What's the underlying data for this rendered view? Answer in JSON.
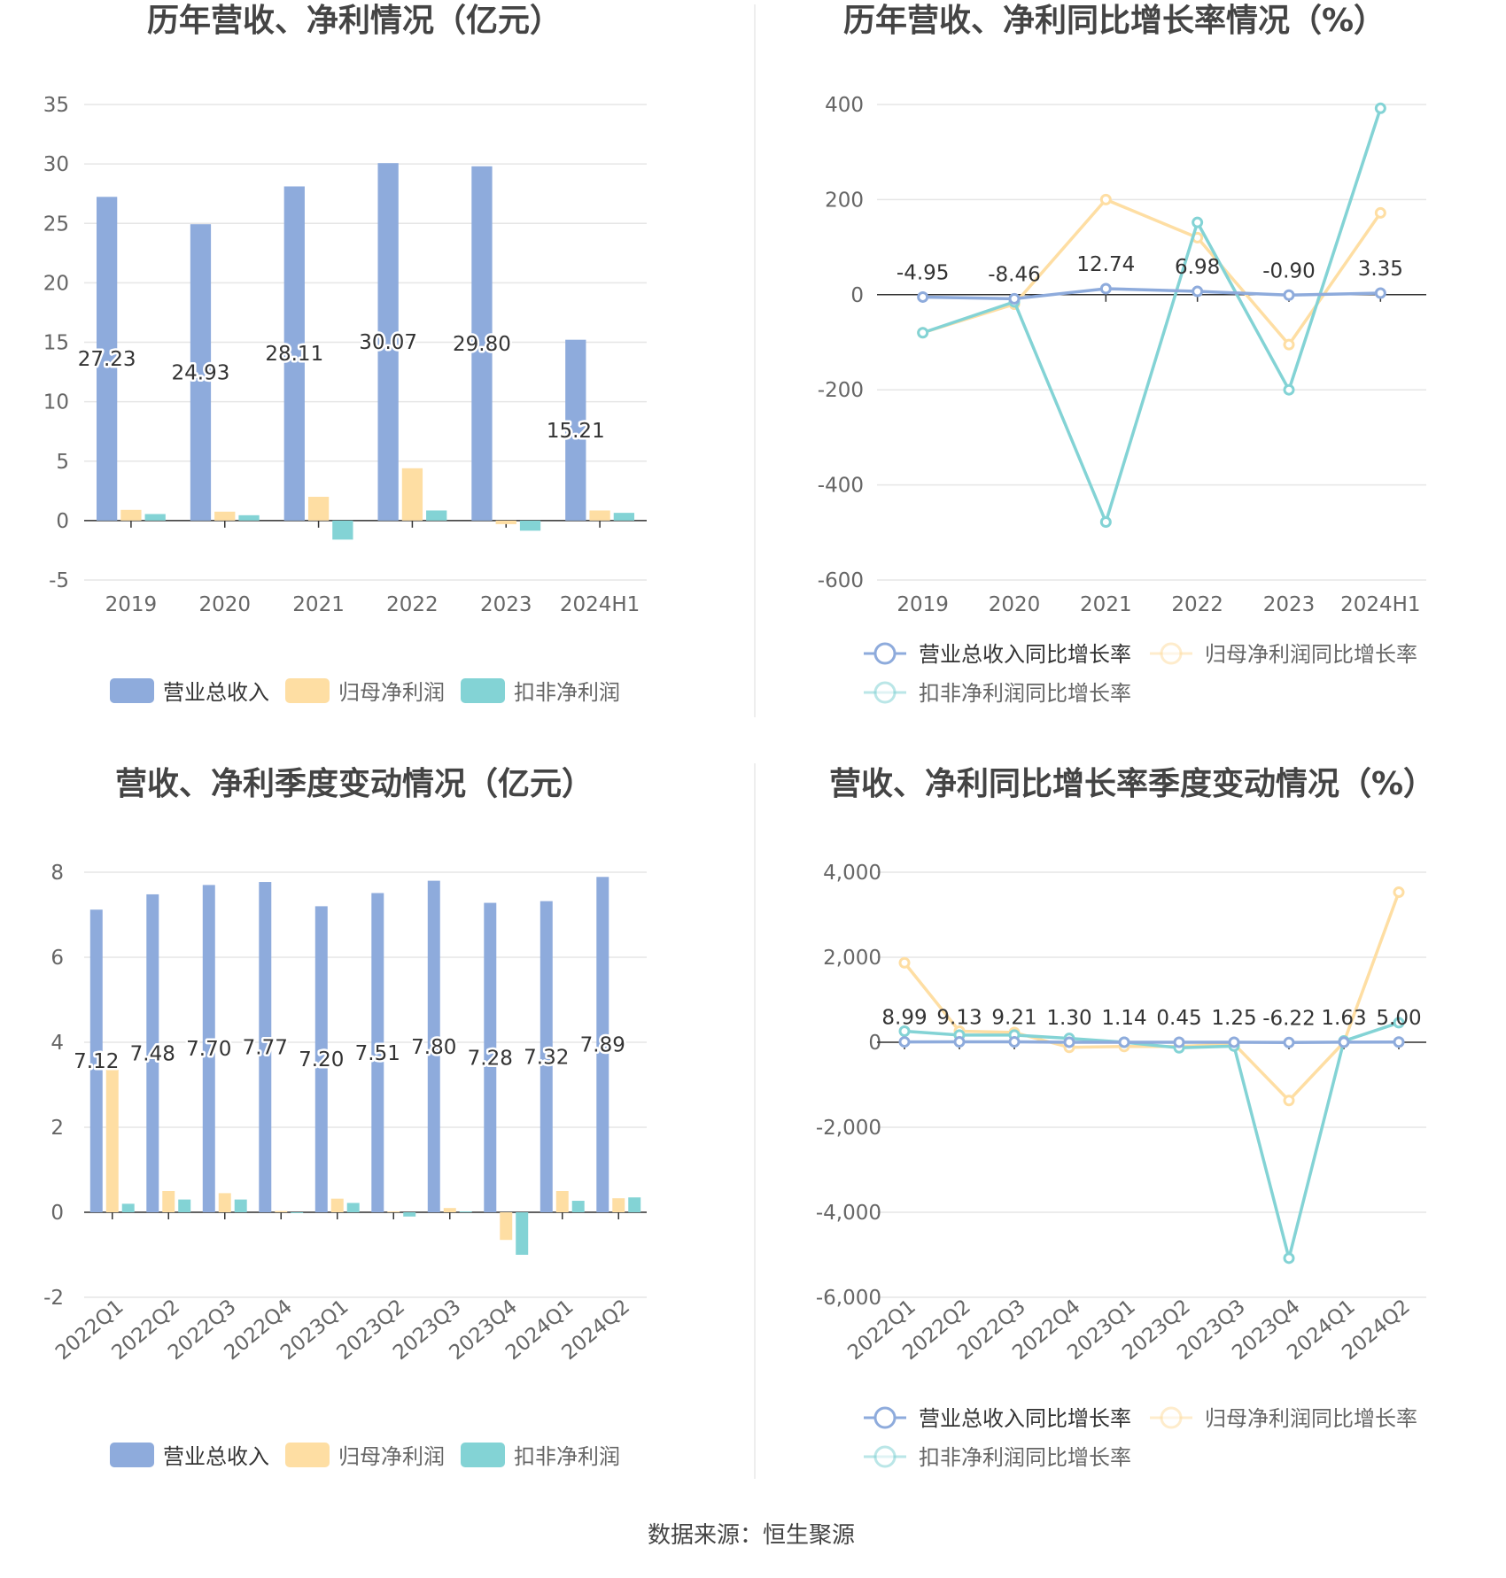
{
  "colors": {
    "revenue": "#8eabdc",
    "net_profit": "#fedea3",
    "deducted_profit": "#83d3d5",
    "grid": "#e6e6e6",
    "axis": "#333333"
  },
  "source_text": "数据来源：恒生聚源",
  "chart_data": [
    {
      "type": "bar",
      "title": "历年营收、净利情况（亿元）",
      "categories": [
        "2019",
        "2020",
        "2021",
        "2022",
        "2023",
        "2024H1"
      ],
      "ylim": [
        -5,
        35
      ],
      "yticks": [
        "35",
        "30",
        "25",
        "20",
        "15",
        "10",
        "5",
        "0",
        "-5"
      ],
      "series": [
        {
          "name": "营业总收入",
          "values": [
            27.23,
            24.93,
            28.11,
            30.07,
            29.8,
            15.21
          ]
        },
        {
          "name": "归母净利润",
          "values": [
            0.9,
            0.75,
            2.0,
            4.4,
            -0.3,
            0.85
          ]
        },
        {
          "name": "扣非净利润",
          "values": [
            0.55,
            0.45,
            -1.6,
            0.85,
            -0.85,
            0.65
          ]
        }
      ],
      "data_labels": [
        "27.23",
        "24.93",
        "28.11",
        "30.07",
        "29.80",
        "15.21"
      ],
      "legend": "bottom",
      "grid": true
    },
    {
      "type": "line",
      "title": "历年营收、净利同比增长率情况（%）",
      "categories": [
        "2019",
        "2020",
        "2021",
        "2022",
        "2023",
        "2024H1"
      ],
      "ylim": [
        -600,
        400
      ],
      "yticks": [
        "400",
        "200",
        "0",
        "-200",
        "-400",
        "-600"
      ],
      "series": [
        {
          "name": "营业总收入同比增长率",
          "values": [
            -4.95,
            -8.46,
            12.74,
            6.98,
            -0.9,
            3.35
          ]
        },
        {
          "name": "归母净利润同比增长率",
          "values": [
            -80,
            -20,
            200,
            120,
            -105,
            172
          ]
        },
        {
          "name": "扣非净利润同比增长率",
          "values": [
            -80,
            -15,
            -478,
            152,
            -200,
            392
          ]
        }
      ],
      "data_labels": [
        "-4.95",
        "-8.46",
        "12.74",
        "6.98",
        "-0.90",
        "3.35"
      ],
      "legend": "bottom",
      "grid": true
    },
    {
      "type": "bar",
      "title": "营收、净利季度变动情况（亿元）",
      "categories": [
        "2022Q1",
        "2022Q2",
        "2022Q3",
        "2022Q4",
        "2023Q1",
        "2023Q2",
        "2023Q3",
        "2023Q4",
        "2024Q1",
        "2024Q2"
      ],
      "ylim": [
        -2,
        8
      ],
      "yticks": [
        "8",
        "6",
        "4",
        "2",
        "0",
        "-2"
      ],
      "series": [
        {
          "name": "营业总收入",
          "values": [
            7.12,
            7.48,
            7.7,
            7.77,
            7.2,
            7.51,
            7.8,
            7.28,
            7.32,
            7.89
          ]
        },
        {
          "name": "归母净利润",
          "values": [
            3.4,
            0.5,
            0.45,
            0.03,
            0.32,
            0.02,
            0.1,
            -0.65,
            0.5,
            0.33
          ]
        },
        {
          "name": "扣非净利润",
          "values": [
            0.2,
            0.3,
            0.3,
            0.0,
            0.22,
            -0.1,
            0.02,
            -1.0,
            0.27,
            0.35
          ]
        }
      ],
      "data_labels": [
        "7.12",
        "7.48",
        "7.70",
        "7.77",
        "7.20",
        "7.51",
        "7.80",
        "7.28",
        "7.32",
        "7.89"
      ],
      "legend": "bottom",
      "grid": true
    },
    {
      "type": "line",
      "title": "营收、净利同比增长率季度变动情况（%）",
      "categories": [
        "2022Q1",
        "2022Q2",
        "2022Q3",
        "2022Q4",
        "2023Q1",
        "2023Q2",
        "2023Q3",
        "2023Q4",
        "2024Q1",
        "2024Q2"
      ],
      "ylim": [
        -6000,
        4000
      ],
      "yticks": [
        "4,000",
        "2,000",
        "0",
        "-2,000",
        "-4,000",
        "-6,000"
      ],
      "series": [
        {
          "name": "营业总收入同比增长率",
          "values": [
            8.99,
            9.13,
            9.21,
            1.3,
            1.14,
            0.45,
            1.25,
            -6.22,
            1.63,
            5.0
          ]
        },
        {
          "name": "归母净利润同比增长率",
          "values": [
            1870,
            260,
            230,
            -120,
            -100,
            -100,
            -40,
            -1370,
            0,
            3530
          ]
        },
        {
          "name": "扣非净利润同比增长率",
          "values": [
            260,
            170,
            170,
            90,
            0,
            -130,
            -90,
            -5080,
            30,
            460
          ]
        }
      ],
      "data_labels": [
        "8.99",
        "9.13",
        "9.21",
        "1.30",
        "1.14",
        "0.45",
        "1.25",
        "-6.22",
        "1.63",
        "5.00"
      ],
      "legend": "bottom",
      "grid": true
    }
  ]
}
